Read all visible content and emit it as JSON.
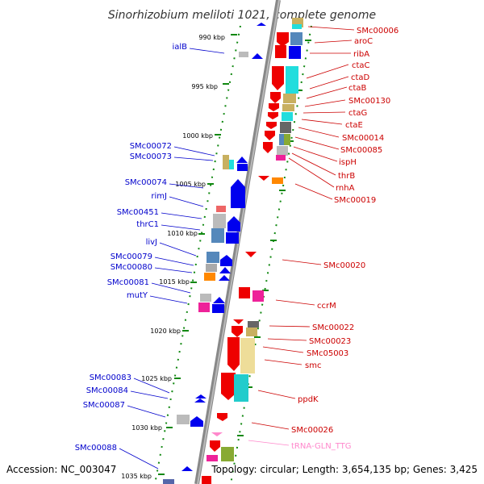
{
  "header": {
    "title": "Sinorhizobium meliloti 1021, complete genome"
  },
  "footer": {
    "accession": "Accession: NC_003047",
    "summary": "Topology: circular; Length: 3,654,135 bp; Genes: 3,425"
  },
  "colors": {
    "plus_label": "#0000cc",
    "minus_label": "#cc0000",
    "trna_label": "#ff88cc",
    "backbone": "#888888",
    "tick": "#118811"
  },
  "ruler": [
    {
      "label": "990 kbp",
      "kbp": 990
    },
    {
      "label": "995 kbp",
      "kbp": 995
    },
    {
      "label": "1000 kbp",
      "kbp": 1000
    },
    {
      "label": "1005 kbp",
      "kbp": 1005
    },
    {
      "label": "1010 kbp",
      "kbp": 1010
    },
    {
      "label": "1015 kbp",
      "kbp": 1015
    },
    {
      "label": "1020 kbp",
      "kbp": 1020
    },
    {
      "label": "1025 kbp",
      "kbp": 1025
    },
    {
      "label": "1030 kbp",
      "kbp": 1030
    },
    {
      "label": "1035 kbp",
      "kbp": 1035
    }
  ],
  "genes_plus": [
    {
      "label": "ialB"
    },
    {
      "label": "SMc00072"
    },
    {
      "label": "SMc00073"
    },
    {
      "label": "SMc00074"
    },
    {
      "label": "rimJ"
    },
    {
      "label": "SMc00451"
    },
    {
      "label": "thrC1"
    },
    {
      "label": "livJ"
    },
    {
      "label": "SMc00079"
    },
    {
      "label": "SMc00080"
    },
    {
      "label": "SMc00081"
    },
    {
      "label": "mutY"
    },
    {
      "label": "SMc00083"
    },
    {
      "label": "SMc00084"
    },
    {
      "label": "SMc00087"
    },
    {
      "label": "SMc00088"
    }
  ],
  "genes_minus": [
    {
      "label": "SMc00006"
    },
    {
      "label": "aroC"
    },
    {
      "label": "ribA"
    },
    {
      "label": "ctaC"
    },
    {
      "label": "ctaD"
    },
    {
      "label": "ctaB"
    },
    {
      "label": "SMc00130"
    },
    {
      "label": "ctaG"
    },
    {
      "label": "ctaE"
    },
    {
      "label": "SMc00014"
    },
    {
      "label": "SMc00085"
    },
    {
      "label": "ispH"
    },
    {
      "label": "thrB"
    },
    {
      "label": "rnhA"
    },
    {
      "label": "SMc00019"
    },
    {
      "label": "SMc00020"
    },
    {
      "label": "ccrM"
    },
    {
      "label": "SMc00022"
    },
    {
      "label": "SMc00023"
    },
    {
      "label": "SMc05003"
    },
    {
      "label": "smc"
    },
    {
      "label": "ppdK"
    },
    {
      "label": "SMc00026"
    },
    {
      "label": "tRNA-GLN_TTG"
    }
  ]
}
